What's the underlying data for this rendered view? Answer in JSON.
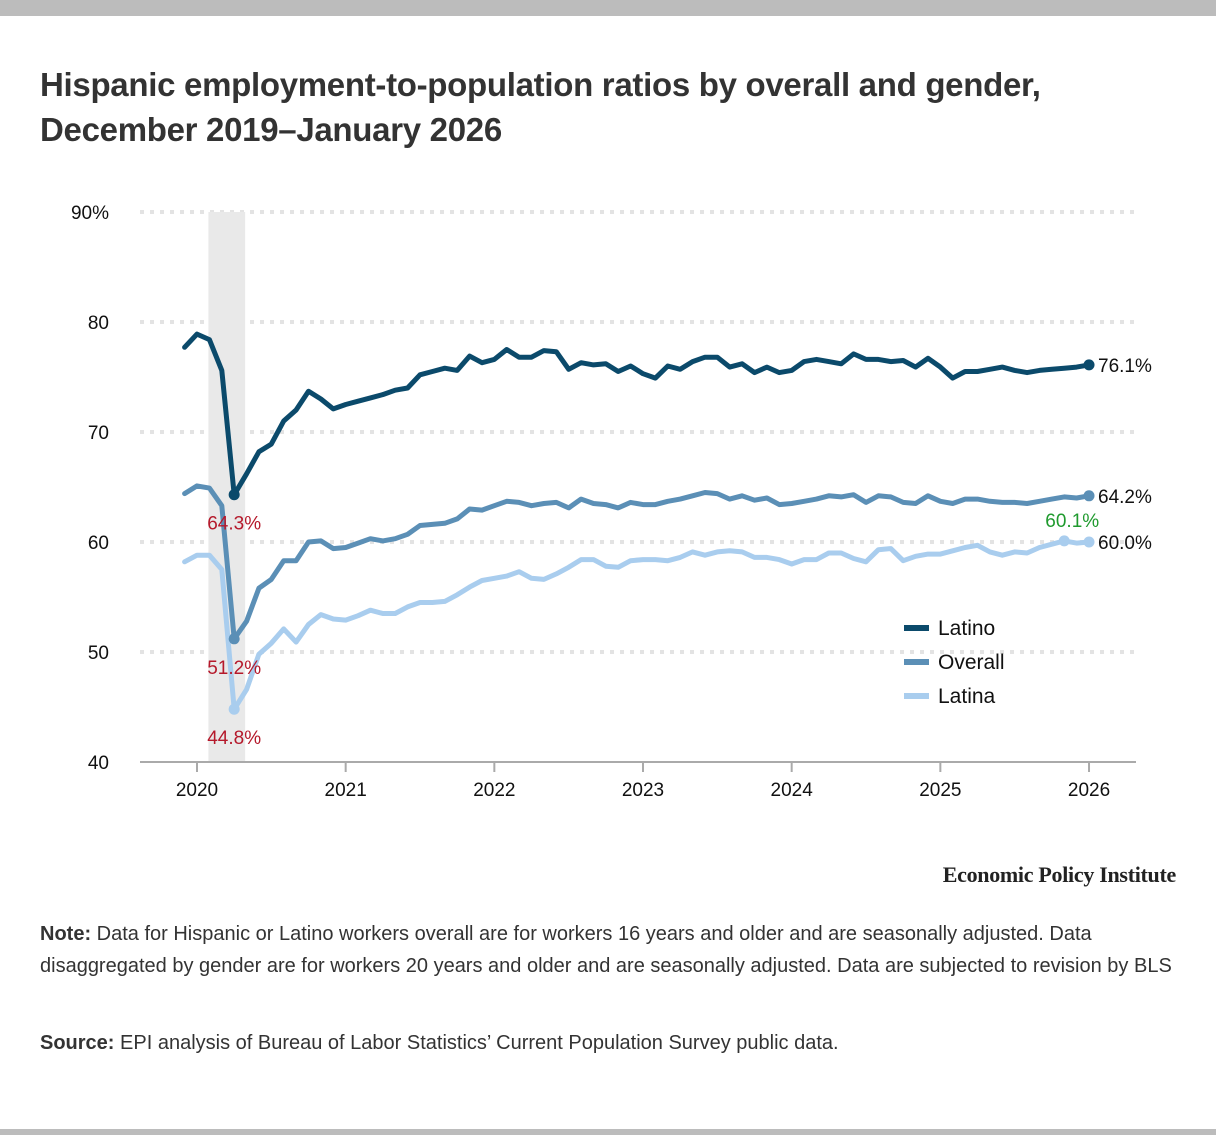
{
  "title": "Hispanic employment-to-population ratios by overall and gender, December 2019–January 2026",
  "brand": "Economic Policy Institute",
  "note": {
    "label": "Note:",
    "text": " Data for Hispanic or Latino workers overall are for workers 16 years and older and are seasonally adjusted. Data disaggregated by gender are for workers 20 years and older and are seasonally adjusted. Data are subjected to revision by BLS"
  },
  "source": {
    "label": "Source:",
    "text": " EPI analysis of Bureau of Labor Statistics’ Current Population Survey public data."
  },
  "chart_data": {
    "type": "line",
    "title": "Hispanic employment-to-population ratios by overall and gender, December 2019–January 2026",
    "xlabel": "",
    "ylabel": "",
    "ylim": [
      40,
      90
    ],
    "y_ticks": [
      40,
      50,
      60,
      70,
      80,
      90
    ],
    "y_tick_labels": [
      "40",
      "50",
      "60",
      "70",
      "80",
      "90%"
    ],
    "x_ticks": [
      "2020",
      "2021",
      "2022",
      "2023",
      "2024",
      "2025",
      "2026"
    ],
    "x_start": "2019-12",
    "x_end": "2026-01",
    "grid": true,
    "legend_position": "lower-right",
    "recession_shading": {
      "start": "2020-02",
      "end": "2020-04"
    },
    "series": [
      {
        "name": "Latino",
        "color": "#0b4a6b",
        "end_label": "76.1%",
        "values": [
          77.7,
          78.9,
          78.4,
          75.6,
          64.3,
          66.2,
          68.2,
          68.9,
          71.0,
          72.0,
          73.7,
          73.0,
          72.1,
          72.5,
          72.8,
          73.1,
          73.4,
          73.8,
          74.0,
          75.2,
          75.5,
          75.8,
          75.6,
          76.9,
          76.3,
          76.6,
          77.5,
          76.8,
          76.8,
          77.4,
          77.3,
          75.7,
          76.3,
          76.1,
          76.2,
          75.5,
          76.0,
          75.3,
          74.9,
          76.0,
          75.7,
          76.4,
          76.8,
          76.8,
          75.9,
          76.2,
          75.4,
          75.9,
          75.4,
          75.6,
          76.4,
          76.6,
          76.4,
          76.2,
          77.1,
          76.6,
          76.6,
          76.4,
          76.5,
          75.9,
          76.7,
          75.9,
          74.9,
          75.5,
          75.5,
          75.7,
          75.9,
          75.6,
          75.4,
          75.6,
          75.7,
          75.8,
          75.9,
          76.1
        ]
      },
      {
        "name": "Overall",
        "color": "#5b8fb6",
        "end_label": "64.2%",
        "values": [
          64.4,
          65.1,
          64.9,
          63.3,
          51.2,
          52.8,
          55.8,
          56.6,
          58.3,
          58.3,
          60.0,
          60.1,
          59.4,
          59.5,
          59.9,
          60.3,
          60.1,
          60.3,
          60.7,
          61.5,
          61.6,
          61.7,
          62.1,
          63.0,
          62.9,
          63.3,
          63.7,
          63.6,
          63.3,
          63.5,
          63.6,
          63.1,
          63.9,
          63.5,
          63.4,
          63.1,
          63.6,
          63.4,
          63.4,
          63.7,
          63.9,
          64.2,
          64.5,
          64.4,
          63.9,
          64.2,
          63.8,
          64.0,
          63.4,
          63.5,
          63.7,
          63.9,
          64.2,
          64.1,
          64.3,
          63.6,
          64.2,
          64.1,
          63.6,
          63.5,
          64.2,
          63.7,
          63.5,
          63.9,
          63.9,
          63.7,
          63.6,
          63.6,
          63.5,
          63.7,
          63.9,
          64.1,
          64.0,
          64.2
        ]
      },
      {
        "name": "Latina",
        "color": "#a9cdee",
        "end_label": "60.0%",
        "values": [
          58.2,
          58.8,
          58.8,
          57.5,
          44.8,
          46.6,
          49.8,
          50.8,
          52.1,
          50.9,
          52.5,
          53.4,
          53.0,
          52.9,
          53.3,
          53.8,
          53.5,
          53.5,
          54.1,
          54.5,
          54.5,
          54.6,
          55.2,
          55.9,
          56.5,
          56.7,
          56.9,
          57.3,
          56.7,
          56.6,
          57.1,
          57.7,
          58.4,
          58.4,
          57.8,
          57.7,
          58.3,
          58.4,
          58.4,
          58.3,
          58.6,
          59.1,
          58.8,
          59.1,
          59.2,
          59.1,
          58.6,
          58.6,
          58.4,
          58.0,
          58.4,
          58.4,
          59.0,
          59.0,
          58.5,
          58.2,
          59.3,
          59.4,
          58.3,
          58.7,
          58.9,
          58.9,
          59.2,
          59.5,
          59.7,
          59.1,
          58.8,
          59.1,
          59.0,
          59.5,
          59.8,
          60.1,
          59.9,
          60.0
        ]
      }
    ],
    "annotations": [
      {
        "series": "Latino",
        "month_index": 4,
        "text": "64.3%",
        "color": "#b5192b"
      },
      {
        "series": "Overall",
        "month_index": 4,
        "text": "51.2%",
        "color": "#b5192b"
      },
      {
        "series": "Latina",
        "month_index": 4,
        "text": "44.8%",
        "color": "#b5192b"
      },
      {
        "series": "Latina",
        "month_index": 71,
        "text": "60.1%",
        "color": "#1f9a2e"
      }
    ]
  }
}
